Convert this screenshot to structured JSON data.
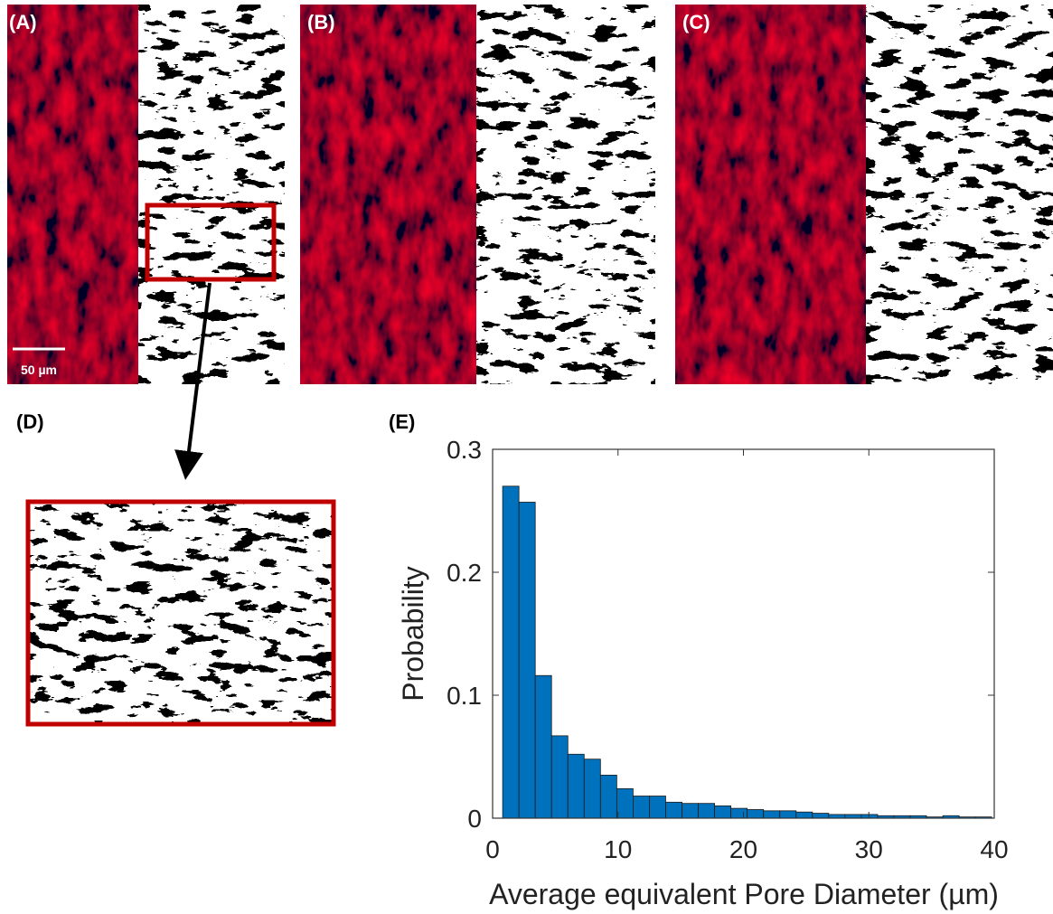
{
  "panel_labels": [
    "(A)",
    "(B)",
    "(C)",
    "(D)",
    "(E)"
  ],
  "scale_bar": "50 µm",
  "chart_data": {
    "type": "histogram",
    "xlabel": "Average equivalent Pore Diameter (µm)",
    "ylabel": "Probability",
    "bins": [
      0.8,
      2.1,
      3.4,
      4.7,
      6,
      7.3,
      8.6,
      9.9,
      11.2,
      12.5,
      13.8,
      15.1,
      16.4,
      17.7,
      19,
      20.3,
      21.6,
      22.9,
      24.2,
      25.5,
      26.8,
      28.1,
      29.4,
      30.7,
      32,
      33.3,
      34.6,
      35.9,
      37.2,
      38.5,
      39.8
    ],
    "values": [
      0.27,
      0.257,
      0.116,
      0.067,
      0.052,
      0.048,
      0.035,
      0.024,
      0.018,
      0.018,
      0.013,
      0.012,
      0.012,
      0.01,
      0.008,
      0.007,
      0.006,
      0.006,
      0.005,
      0.004,
      0.003,
      0.003,
      0.003,
      0.002,
      0.002,
      0.002,
      0.001,
      0.002,
      0.001,
      0.001
    ],
    "color": "#0072bd",
    "xlim": [
      0,
      40
    ],
    "xticks": [
      0,
      10,
      20,
      30,
      40
    ],
    "ylim": [
      0,
      0.3
    ],
    "yticks": [
      0,
      0.1,
      0.2,
      0.3
    ]
  }
}
